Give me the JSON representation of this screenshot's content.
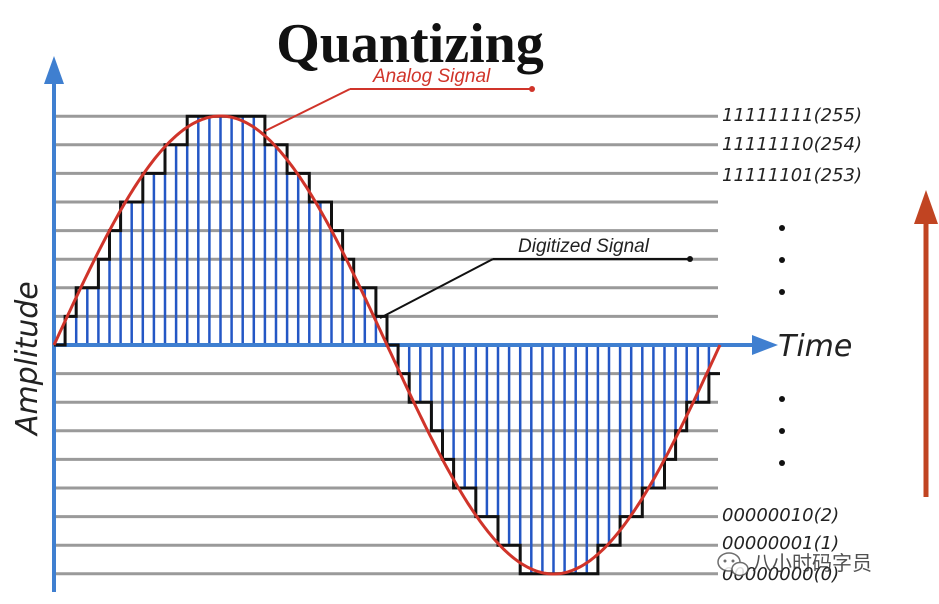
{
  "title": "Quantizing",
  "analog_label": "Analog Signal",
  "digitized_label": "Digitized Signal",
  "x_axis_label": "Time",
  "y_axis_label": "Amplitude",
  "levels_top": [
    "11111111(255)",
    "11111110(254)",
    "11111101(253)"
  ],
  "levels_bottom": [
    "00000010(2)",
    "00000001(1)",
    "00000000(0)"
  ],
  "watermark": "八小时码字员",
  "colors": {
    "analog": "#d0342a",
    "digital": "#111111",
    "samples": "#2457c5",
    "axis": "#3f7fd0",
    "grid": "#9a9a9a",
    "arrow_right": "#c14422"
  },
  "icons": [
    "wechat-icon"
  ]
}
